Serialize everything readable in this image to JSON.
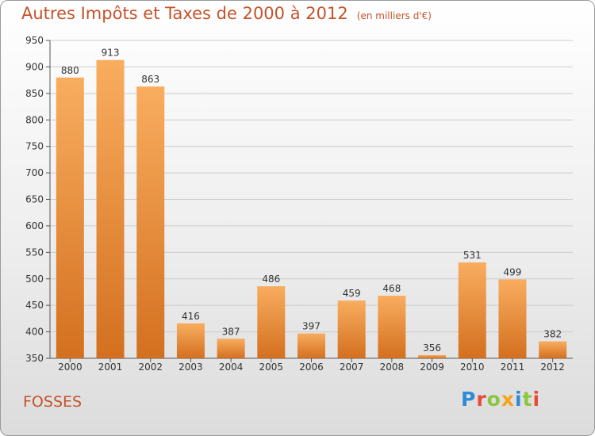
{
  "title": "Autres Impôts et Taxes de 2000 à 2012",
  "unit": "(en milliers d'€)",
  "commune": "FOSSES",
  "logo_text": "Proxiti",
  "colors": {
    "accent": "#c4532a",
    "bar_light": "#f7a655",
    "bar_dark": "#d6721f",
    "logo": [
      "#2e8bd6",
      "#e64b3c",
      "#8cc63f",
      "#f7a21b",
      "#2e8bd6",
      "#8cc63f",
      "#e64b3c"
    ]
  },
  "chart_data": {
    "type": "bar",
    "title": "Autres Impôts et Taxes de 2000 à 2012",
    "subtitle": "(en milliers d'€)",
    "categories": [
      "2000",
      "2001",
      "2002",
      "2003",
      "2004",
      "2005",
      "2006",
      "2007",
      "2008",
      "2009",
      "2010",
      "2011",
      "2012"
    ],
    "values": [
      880,
      913,
      863,
      416,
      387,
      486,
      397,
      459,
      468,
      356,
      531,
      499,
      382
    ],
    "xlabel": "",
    "ylabel": "",
    "ylim": [
      350,
      950
    ],
    "yticks": [
      350,
      400,
      450,
      500,
      550,
      600,
      650,
      700,
      750,
      800,
      850,
      900,
      950
    ],
    "grid": true,
    "legend": "none"
  }
}
